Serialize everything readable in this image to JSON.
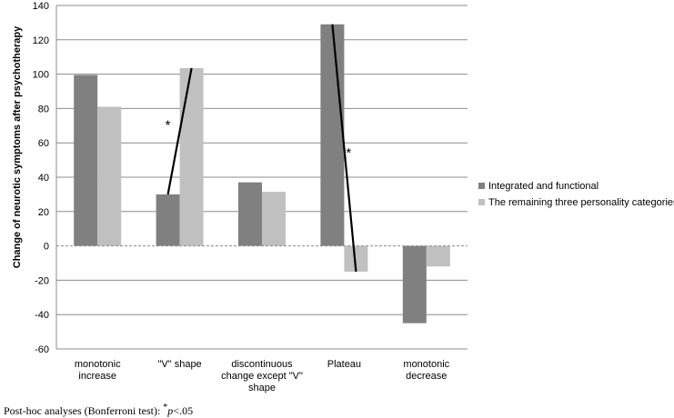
{
  "chart_data": {
    "type": "bar",
    "title": "",
    "ylabel": "Change of neurotic symptoms after psychotherapy",
    "xlabel": "",
    "ylim": [
      -60,
      140
    ],
    "yticks": [
      -60,
      -40,
      -20,
      0,
      20,
      40,
      60,
      80,
      100,
      120,
      140
    ],
    "grid": "horizontal",
    "legend_position": "right",
    "categories": [
      [
        "monotonic",
        "increase"
      ],
      [
        "\"V\" shape"
      ],
      [
        "discontinuous",
        "change except \"V\"",
        "shape"
      ],
      [
        "Plateau"
      ],
      [
        "monotonic",
        "decrease"
      ]
    ],
    "series": [
      {
        "name": "Integrated and functional",
        "color": "#808080",
        "values": [
          99.5,
          30,
          37,
          129,
          -45
        ]
      },
      {
        "name": "The remaining three personality categories",
        "color": "#c0c0c0",
        "values": [
          81,
          103.5,
          31.5,
          -15,
          -12
        ]
      }
    ],
    "significance": [
      {
        "category_index": 1,
        "marker": "*"
      },
      {
        "category_index": 3,
        "marker": "*"
      }
    ]
  },
  "footnote": {
    "text": "Post-hoc analyses (Bonferroni test): ",
    "sup": "*",
    "italic": "p",
    "tail": "<.05"
  }
}
